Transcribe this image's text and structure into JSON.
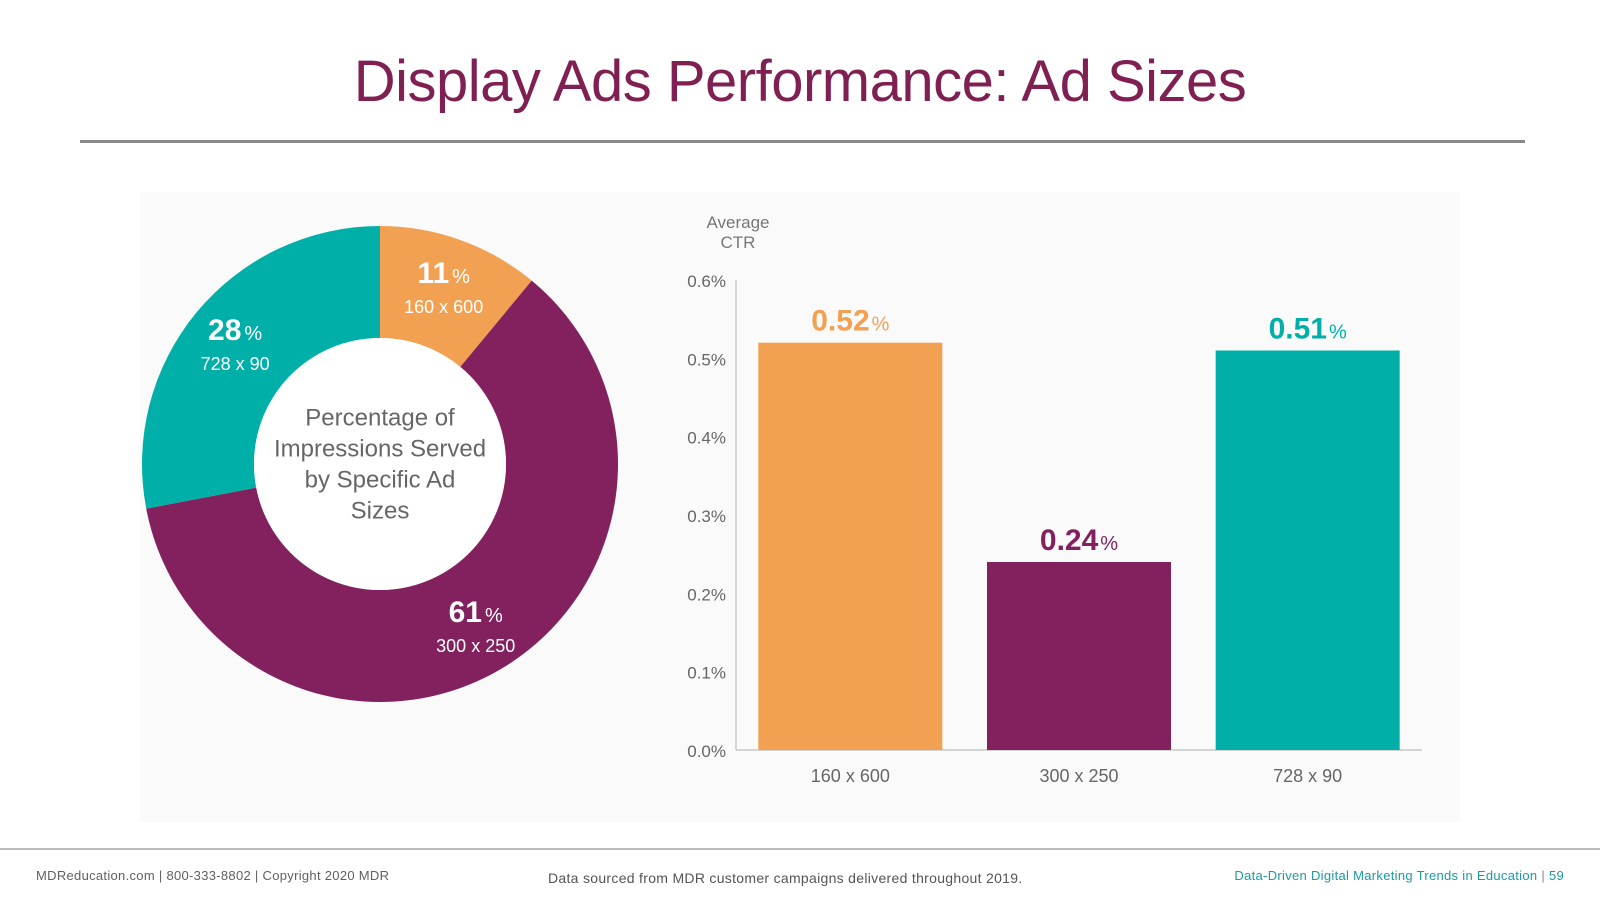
{
  "header": {
    "title": "Display Ads Performance: Ad Sizes"
  },
  "chart_data": [
    {
      "type": "pie",
      "style": "donut",
      "title": "Percentage of Impressions Served by Specific Ad Sizes",
      "center_label_lines": [
        "Percentage of",
        "Impressions Served",
        "by Specific Ad",
        "Sizes"
      ],
      "slices": [
        {
          "label": "160 x 600",
          "value": 11,
          "display": "11",
          "color": "#F2A052"
        },
        {
          "label": "300 x 250",
          "value": 61,
          "display": "61",
          "color": "#82215E"
        },
        {
          "label": "728 x 90",
          "value": 28,
          "display": "28",
          "color": "#00B0A8"
        }
      ],
      "value_suffix": "%"
    },
    {
      "type": "bar",
      "ylabel_lines": [
        "Average",
        "CTR"
      ],
      "categories": [
        "160 x 600",
        "300 x 250",
        "728 x 90"
      ],
      "values": [
        0.52,
        0.24,
        0.51
      ],
      "value_labels": [
        "0.52",
        "0.24",
        "0.51"
      ],
      "value_suffix": "%",
      "colors": [
        "#F2A052",
        "#82215E",
        "#00B0A8"
      ],
      "ylim": [
        0,
        0.6
      ],
      "yticks": [
        {
          "value": 0.0,
          "label": "0.0%"
        },
        {
          "value": 0.1,
          "label": "0.1%"
        },
        {
          "value": 0.2,
          "label": "0.2%"
        },
        {
          "value": 0.3,
          "label": "0.3%"
        },
        {
          "value": 0.4,
          "label": "0.4%"
        },
        {
          "value": 0.5,
          "label": "0.5%"
        },
        {
          "value": 0.6,
          "label": "0.6%"
        }
      ],
      "grid": false
    }
  ],
  "footer": {
    "left": "MDReducation.com  |  800-333-8802  |  Copyright 2020 MDR",
    "center": "Data sourced from MDR customer campaigns delivered throughout 2019.",
    "right_title": "Data-Driven Digital Marketing Trends in Education",
    "right_sep": "|",
    "page_number": "59"
  }
}
